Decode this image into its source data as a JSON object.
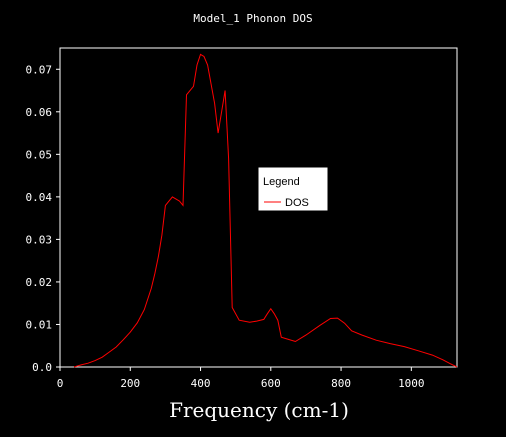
{
  "chart_data": {
    "type": "line",
    "title": "Model_1 Phonon DOS",
    "xlabel": "Frequency (cm-1)",
    "ylabel": "",
    "xlim": [
      0,
      1130
    ],
    "ylim": [
      0,
      0.075
    ],
    "x_ticks": [
      "0",
      "200",
      "400",
      "600",
      "800",
      "1000"
    ],
    "x_tick_values": [
      0,
      200,
      400,
      600,
      800,
      1000
    ],
    "y_ticks": [
      "0.0",
      "0.01",
      "0.02",
      "0.03",
      "0.04",
      "0.05",
      "0.06",
      "0.07"
    ],
    "y_tick_values": [
      0,
      0.01,
      0.02,
      0.03,
      0.04,
      0.05,
      0.06,
      0.07
    ],
    "grid": false,
    "legend": {
      "title": "Legend",
      "placement": "center-right"
    },
    "background": "#000000",
    "axis_color": "#ffffff",
    "series": [
      {
        "name": "DOS",
        "color": "#ff0000",
        "x": [
          40,
          60,
          80,
          100,
          120,
          140,
          160,
          180,
          200,
          220,
          240,
          260,
          270,
          280,
          290,
          300,
          320,
          340,
          350,
          360,
          380,
          390,
          400,
          410,
          420,
          440,
          450,
          460,
          470,
          480,
          490,
          510,
          540,
          560,
          580,
          590,
          600,
          610,
          620,
          630,
          650,
          670,
          700,
          740,
          770,
          790,
          810,
          830,
          860,
          900,
          940,
          980,
          1020,
          1060,
          1090,
          1110,
          1130
        ],
        "y": [
          0.0,
          0.0005,
          0.0009,
          0.0015,
          0.0023,
          0.0035,
          0.0047,
          0.0064,
          0.0082,
          0.0104,
          0.0135,
          0.0185,
          0.022,
          0.026,
          0.031,
          0.038,
          0.04,
          0.039,
          0.038,
          0.064,
          0.066,
          0.071,
          0.0735,
          0.073,
          0.071,
          0.062,
          0.055,
          0.06,
          0.065,
          0.049,
          0.014,
          0.011,
          0.0105,
          0.0108,
          0.0112,
          0.0125,
          0.0137,
          0.0125,
          0.011,
          0.007,
          0.0065,
          0.006,
          0.0075,
          0.0098,
          0.0114,
          0.0115,
          0.0103,
          0.0085,
          0.0075,
          0.0063,
          0.0055,
          0.0048,
          0.0038,
          0.0028,
          0.0017,
          0.0008,
          0.0
        ]
      }
    ]
  }
}
